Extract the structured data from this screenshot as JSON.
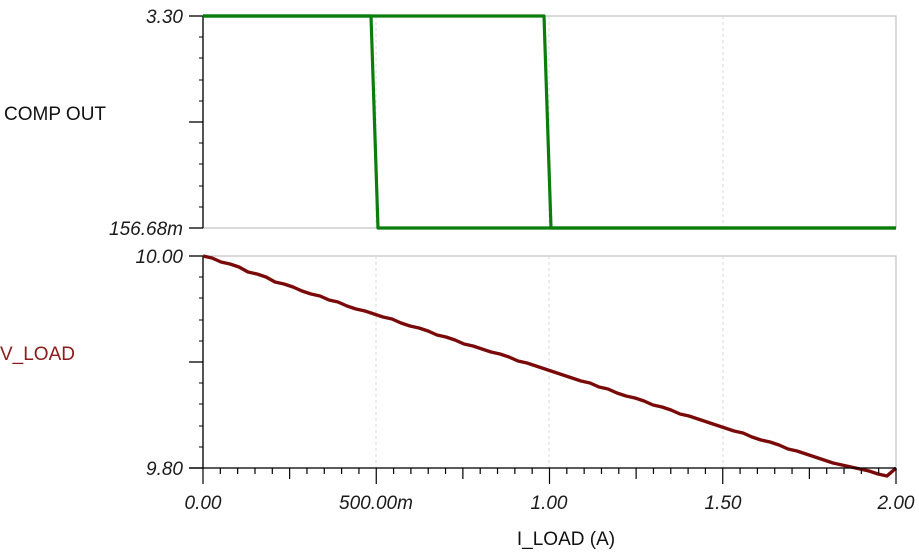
{
  "chart_data": [
    {
      "type": "line",
      "title": "",
      "ylabel": "COMP OUT",
      "xlabel": "I_LOAD (A)",
      "ylim": [
        0.15668,
        3.3
      ],
      "xlim": [
        0,
        2.0
      ],
      "y_ticks": [
        "3.30",
        "156.68m"
      ],
      "grid": true,
      "color": "#0a7d0a",
      "series": [
        {
          "name": "COMP OUT (trace 1)",
          "x": [
            0.0,
            0.485,
            0.505,
            2.0
          ],
          "y": [
            3.3,
            3.3,
            0.15668,
            0.15668
          ]
        },
        {
          "name": "COMP OUT (trace 2)",
          "x": [
            0.0,
            0.985,
            1.005,
            2.0
          ],
          "y": [
            3.3,
            3.3,
            0.15668,
            0.15668
          ]
        }
      ]
    },
    {
      "type": "line",
      "title": "",
      "ylabel": "V_LOAD",
      "xlabel": "I_LOAD (A)",
      "ylim": [
        9.8,
        10.0
      ],
      "xlim": [
        0,
        2.0
      ],
      "y_ticks": [
        "10.00",
        "9.80"
      ],
      "x_ticks": [
        "0.00",
        "500.00m",
        "1.00",
        "1.50",
        "2.00"
      ],
      "grid": true,
      "color": "#7a0a0a",
      "series": [
        {
          "name": "V_LOAD",
          "x": [
            0.0,
            0.25,
            0.5,
            0.75,
            1.0,
            1.25,
            1.5,
            1.75,
            2.0
          ],
          "y": [
            10.0,
            9.975,
            9.95,
            9.925,
            9.9,
            9.875,
            9.85,
            9.825,
            9.8
          ]
        }
      ]
    }
  ],
  "labels": {
    "top_y_max": "3.30",
    "top_y_min": "156.68m",
    "top_title": "COMP OUT",
    "bottom_y_max": "10.00",
    "bottom_y_min": "9.80",
    "bottom_title": "V_LOAD",
    "x_ticks": [
      "0.00",
      "500.00m",
      "1.00",
      "1.50",
      "2.00"
    ],
    "x_title": "I_LOAD (A)"
  },
  "colors": {
    "comp_out": "#0a7d0a",
    "v_load": "#7a0a0a",
    "v_load_label": "#8b1a1a",
    "grid": "#cccccc",
    "frame": "#c0c0c0",
    "axis": "#000000"
  }
}
